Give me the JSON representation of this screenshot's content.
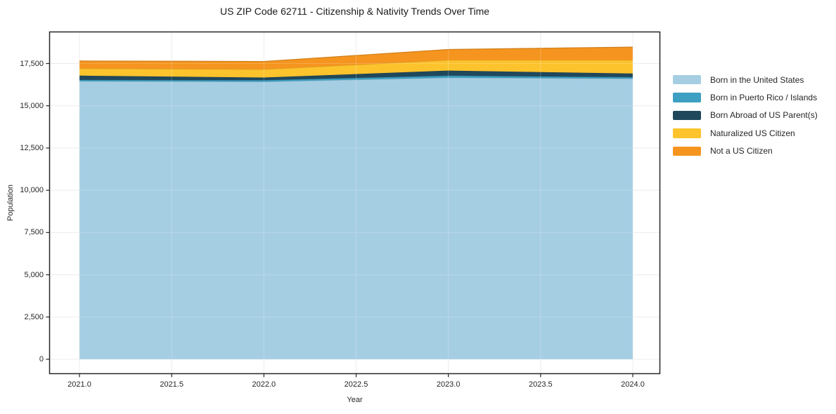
{
  "chart": {
    "title": "US ZIP Code 62711 - Citizenship & Nativity Trends Over Time",
    "xlabel": "Year",
    "ylabel": "Population"
  },
  "axes": {
    "x_tick_labels": [
      "2021.0",
      "2021.5",
      "2022.0",
      "2022.5",
      "2023.0",
      "2023.5",
      "2024.0"
    ],
    "y_tick_labels": [
      "0",
      "2,500",
      "5,000",
      "7,500",
      "10,000",
      "12,500",
      "15,000",
      "17,500"
    ]
  },
  "legend": {
    "items": [
      "Born in the United States",
      "Born in Puerto Rico / Islands",
      "Born Abroad of US Parent(s)",
      "Naturalized US Citizen",
      "Not a US Citizen"
    ],
    "position": "outside-right",
    "frame": false
  },
  "chart_data": {
    "type": "area",
    "stacked": true,
    "title": "US ZIP Code 62711 - Citizenship & Nativity Trends Over Time",
    "xlabel": "Year",
    "ylabel": "Population",
    "x": [
      2021,
      2022,
      2023,
      2024
    ],
    "x_ticks": [
      2021.0,
      2021.5,
      2022.0,
      2022.5,
      2023.0,
      2023.5,
      2024.0
    ],
    "y_ticks": [
      0,
      2500,
      5000,
      7500,
      10000,
      12500,
      15000,
      17500
    ],
    "ylim": [
      0,
      19390
    ],
    "grid": true,
    "series": [
      {
        "name": "Born in the United States",
        "color": "#a6cee3",
        "values": [
          16450,
          16420,
          16660,
          16600
        ]
      },
      {
        "name": "Born in Puerto Rico / Islands",
        "color": "#3d9fc1",
        "values": [
          80,
          90,
          120,
          90
        ]
      },
      {
        "name": "Born Abroad of US Parent(s)",
        "color": "#20485c",
        "values": [
          250,
          160,
          300,
          215
        ]
      },
      {
        "name": "Naturalized US Citizen",
        "color": "#fcc32d",
        "values": [
          420,
          480,
          620,
          795
        ]
      },
      {
        "name": "Not a US Citizen",
        "color": "#f5951f",
        "values": [
          450,
          470,
          630,
          770
        ]
      }
    ],
    "stacked_totals": [
      17650,
      17620,
      18330,
      18470
    ]
  },
  "colors": {
    "background": "#ffffff",
    "grid": "#e8e8e8",
    "axis": "#262626",
    "text": "#262626",
    "title": "#1a1a1a"
  }
}
